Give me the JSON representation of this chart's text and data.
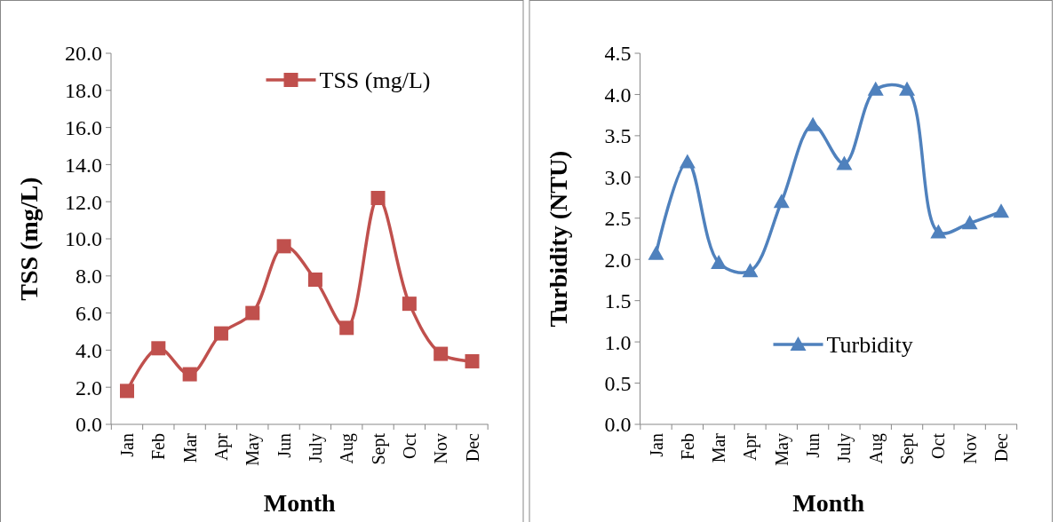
{
  "chart_data": [
    {
      "type": "line",
      "xlabel": "Month",
      "ylabel": "TSS (mg/L)",
      "categories": [
        "Jan",
        "Feb",
        "Mar",
        "Apr",
        "May",
        "Jun",
        "July",
        "Aug",
        "Sept",
        "Oct",
        "Nov",
        "Dec"
      ],
      "series": [
        {
          "name": "TSS (mg/L)",
          "color": "#c0504d",
          "values": [
            1.8,
            4.1,
            2.7,
            4.9,
            6.0,
            9.6,
            7.8,
            5.2,
            12.2,
            6.5,
            3.8,
            3.4
          ]
        }
      ],
      "ylim": [
        0,
        20
      ],
      "yticks": [
        {
          "value": 0,
          "label": "0.0"
        },
        {
          "value": 2,
          "label": "2.0"
        },
        {
          "value": 4,
          "label": "4.0"
        },
        {
          "value": 6,
          "label": "6.0"
        },
        {
          "value": 8,
          "label": "8.0"
        },
        {
          "value": 10,
          "label": "10.0"
        },
        {
          "value": 12,
          "label": "12.0"
        },
        {
          "value": 14,
          "label": "14.0"
        },
        {
          "value": 16,
          "label": "16.0"
        },
        {
          "value": 18,
          "label": "18.0"
        },
        {
          "value": 20,
          "label": "20.0"
        }
      ],
      "grid": false,
      "legend": "top right",
      "marker": "square",
      "line_style": "solid"
    },
    {
      "type": "line",
      "xlabel": "Month",
      "ylabel": "Turbidity (NTU)",
      "categories": [
        "Jan",
        "Feb",
        "Mar",
        "Apr",
        "May",
        "Jun",
        "July",
        "Aug",
        "Sept",
        "Oct",
        "Nov",
        "Dec"
      ],
      "series": [
        {
          "name": "Turbidity",
          "color": "#4f81bd",
          "values": [
            2.07,
            3.18,
            1.96,
            1.86,
            2.7,
            3.63,
            3.16,
            4.06,
            4.06,
            2.33,
            2.44,
            2.58
          ]
        }
      ],
      "ylim": [
        0,
        4.5
      ],
      "yticks": [
        {
          "value": 0,
          "label": "0.0"
        },
        {
          "value": 0.5,
          "label": "0.5"
        },
        {
          "value": 1,
          "label": "1.0"
        },
        {
          "value": 1.5,
          "label": "1.5"
        },
        {
          "value": 2,
          "label": "2.0"
        },
        {
          "value": 2.5,
          "label": "2.5"
        },
        {
          "value": 3,
          "label": "3.0"
        },
        {
          "value": 3.5,
          "label": "3.5"
        },
        {
          "value": 4,
          "label": "4.0"
        },
        {
          "value": 4.5,
          "label": "4.5"
        }
      ],
      "grid": false,
      "legend": "bottom",
      "marker": "triangle",
      "line_style": "solid"
    }
  ]
}
